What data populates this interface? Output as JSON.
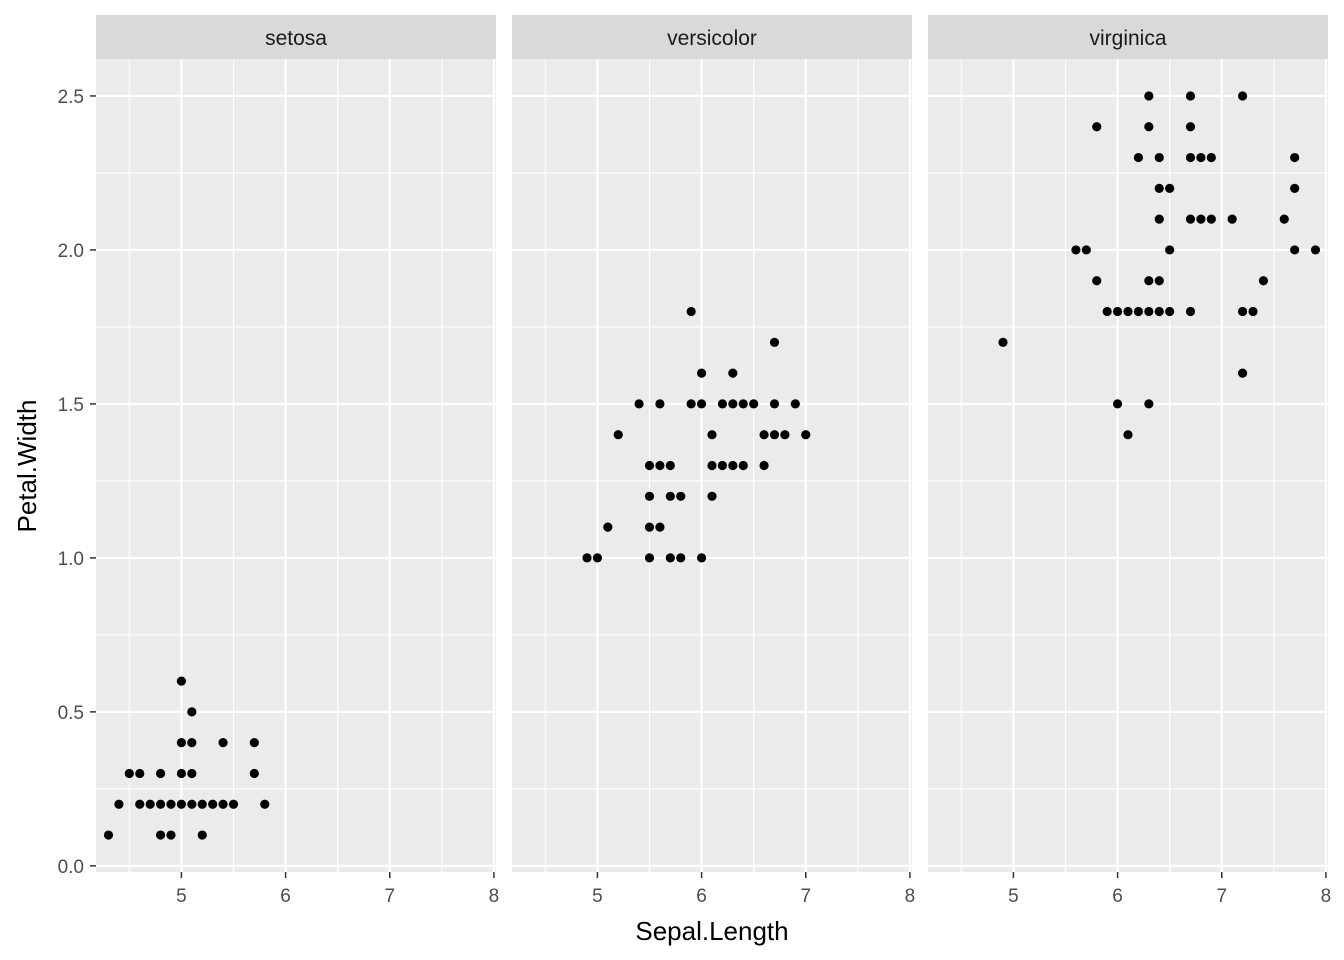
{
  "chart_data": {
    "type": "scatter",
    "xlabel": "Sepal.Length",
    "ylabel": "Petal.Width",
    "xlim": [
      4.18,
      8.02
    ],
    "ylim": [
      -0.02,
      2.62
    ],
    "x_ticks": [
      5,
      6,
      7,
      8
    ],
    "y_ticks": [
      0.0,
      0.5,
      1.0,
      1.5,
      2.0,
      2.5
    ],
    "x_tick_labels": [
      "5",
      "6",
      "7",
      "8"
    ],
    "y_tick_labels": [
      "0.0",
      "0.5",
      "1.0",
      "1.5",
      "2.0",
      "2.5"
    ],
    "grid": true,
    "facet_by": "Species",
    "colors": {
      "panel": "#ebebeb",
      "grid": "#ffffff",
      "strip": "#d9d9d9",
      "point": "#000000"
    },
    "panels": [
      {
        "label": "setosa",
        "points": [
          [
            4.3,
            0.1
          ],
          [
            4.4,
            0.2
          ],
          [
            4.5,
            0.3
          ],
          [
            4.6,
            0.3
          ],
          [
            4.6,
            0.2
          ],
          [
            4.7,
            0.2
          ],
          [
            4.8,
            0.2
          ],
          [
            4.8,
            0.1
          ],
          [
            4.8,
            0.3
          ],
          [
            4.9,
            0.2
          ],
          [
            4.9,
            0.1
          ],
          [
            5.0,
            0.2
          ],
          [
            5.0,
            0.6
          ],
          [
            5.0,
            0.4
          ],
          [
            5.0,
            0.3
          ],
          [
            5.1,
            0.2
          ],
          [
            5.1,
            0.5
          ],
          [
            5.1,
            0.4
          ],
          [
            5.1,
            0.3
          ],
          [
            5.2,
            0.2
          ],
          [
            5.2,
            0.1
          ],
          [
            5.3,
            0.2
          ],
          [
            5.4,
            0.2
          ],
          [
            5.4,
            0.4
          ],
          [
            5.5,
            0.2
          ],
          [
            5.7,
            0.4
          ],
          [
            5.7,
            0.3
          ],
          [
            5.8,
            0.2
          ]
        ]
      },
      {
        "label": "versicolor",
        "points": [
          [
            4.9,
            1.0
          ],
          [
            5.0,
            1.0
          ],
          [
            5.1,
            1.1
          ],
          [
            5.2,
            1.4
          ],
          [
            5.4,
            1.5
          ],
          [
            5.5,
            1.0
          ],
          [
            5.5,
            1.1
          ],
          [
            5.5,
            1.2
          ],
          [
            5.5,
            1.3
          ],
          [
            5.6,
            1.1
          ],
          [
            5.6,
            1.3
          ],
          [
            5.6,
            1.5
          ],
          [
            5.7,
            1.0
          ],
          [
            5.7,
            1.2
          ],
          [
            5.7,
            1.3
          ],
          [
            5.8,
            1.0
          ],
          [
            5.8,
            1.2
          ],
          [
            5.9,
            1.5
          ],
          [
            5.9,
            1.8
          ],
          [
            6.0,
            1.0
          ],
          [
            6.0,
            1.5
          ],
          [
            6.0,
            1.6
          ],
          [
            6.1,
            1.2
          ],
          [
            6.1,
            1.3
          ],
          [
            6.1,
            1.4
          ],
          [
            6.2,
            1.3
          ],
          [
            6.2,
            1.5
          ],
          [
            6.3,
            1.3
          ],
          [
            6.3,
            1.5
          ],
          [
            6.3,
            1.6
          ],
          [
            6.4,
            1.3
          ],
          [
            6.4,
            1.5
          ],
          [
            6.5,
            1.5
          ],
          [
            6.6,
            1.3
          ],
          [
            6.6,
            1.4
          ],
          [
            6.7,
            1.4
          ],
          [
            6.7,
            1.5
          ],
          [
            6.7,
            1.7
          ],
          [
            6.8,
            1.4
          ],
          [
            6.9,
            1.5
          ],
          [
            7.0,
            1.4
          ]
        ]
      },
      {
        "label": "virginica",
        "points": [
          [
            4.9,
            1.7
          ],
          [
            5.6,
            2.0
          ],
          [
            5.7,
            2.0
          ],
          [
            5.8,
            1.9
          ],
          [
            5.8,
            2.4
          ],
          [
            5.9,
            1.8
          ],
          [
            6.0,
            1.8
          ],
          [
            6.0,
            1.5
          ],
          [
            6.1,
            1.8
          ],
          [
            6.1,
            1.4
          ],
          [
            6.2,
            1.8
          ],
          [
            6.2,
            2.3
          ],
          [
            6.3,
            1.8
          ],
          [
            6.3,
            1.9
          ],
          [
            6.3,
            1.5
          ],
          [
            6.3,
            2.4
          ],
          [
            6.3,
            2.5
          ],
          [
            6.4,
            1.8
          ],
          [
            6.4,
            2.1
          ],
          [
            6.4,
            2.2
          ],
          [
            6.4,
            2.3
          ],
          [
            6.4,
            1.9
          ],
          [
            6.5,
            1.8
          ],
          [
            6.5,
            2.0
          ],
          [
            6.5,
            2.2
          ],
          [
            6.7,
            1.8
          ],
          [
            6.7,
            2.1
          ],
          [
            6.7,
            2.3
          ],
          [
            6.7,
            2.4
          ],
          [
            6.7,
            2.5
          ],
          [
            6.8,
            2.1
          ],
          [
            6.8,
            2.3
          ],
          [
            6.9,
            2.1
          ],
          [
            6.9,
            2.3
          ],
          [
            7.1,
            2.1
          ],
          [
            7.2,
            1.6
          ],
          [
            7.2,
            1.8
          ],
          [
            7.2,
            2.5
          ],
          [
            7.3,
            1.8
          ],
          [
            7.4,
            1.9
          ],
          [
            7.6,
            2.1
          ],
          [
            7.7,
            2.0
          ],
          [
            7.7,
            2.2
          ],
          [
            7.7,
            2.3
          ],
          [
            7.9,
            2.0
          ]
        ]
      }
    ]
  }
}
